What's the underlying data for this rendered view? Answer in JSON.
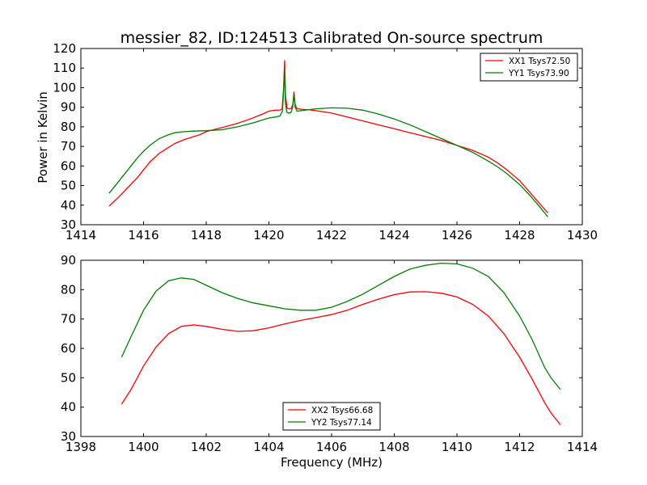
{
  "figure": {
    "title": "messier_82, ID:124513 Calibrated On-source spectrum",
    "ylabel": "Power in Kelvin",
    "xlabel": "Frequency (MHz)"
  },
  "chart_data": [
    {
      "type": "line",
      "xlim": [
        1414,
        1430
      ],
      "ylim": [
        30,
        120
      ],
      "xticks": [
        1414,
        1416,
        1418,
        1420,
        1422,
        1424,
        1426,
        1428,
        1430
      ],
      "yticks": [
        30,
        40,
        50,
        60,
        70,
        80,
        90,
        100,
        110,
        120
      ],
      "legend_position": "top-right",
      "series": [
        {
          "name": "XX1 Tsys72.50",
          "color": "#ff0000",
          "x": [
            1414.9,
            1415.2,
            1415.5,
            1415.8,
            1416.0,
            1416.2,
            1416.5,
            1416.8,
            1417.0,
            1417.3,
            1417.5,
            1417.8,
            1418.0,
            1418.3,
            1418.6,
            1419.0,
            1419.4,
            1419.8,
            1420.0,
            1420.2,
            1420.35,
            1420.42,
            1420.47,
            1420.5,
            1420.53,
            1420.58,
            1420.65,
            1420.72,
            1420.77,
            1420.8,
            1420.83,
            1420.88,
            1421.0,
            1421.3,
            1421.6,
            1422.0,
            1422.5,
            1423.0,
            1423.5,
            1424.0,
            1424.5,
            1425.0,
            1425.5,
            1426.0,
            1426.5,
            1427.0,
            1427.3,
            1427.6,
            1428.0,
            1428.3,
            1428.6,
            1428.9
          ],
          "y": [
            39.5,
            44,
            49,
            54,
            58,
            62,
            66.5,
            69.5,
            71.5,
            73.5,
            74.5,
            76,
            77.5,
            78.8,
            80,
            81.8,
            84,
            86.5,
            88,
            88.5,
            88.6,
            89,
            100,
            114,
            96,
            89.5,
            89.2,
            89.5,
            92,
            98,
            92,
            89.5,
            89,
            88.7,
            88,
            87,
            85,
            83,
            81,
            79,
            77,
            75,
            73,
            70.5,
            68,
            64.5,
            61.5,
            58,
            52.5,
            47,
            41.5,
            36
          ]
        },
        {
          "name": "YY1 Tsys73.90",
          "color": "#008000",
          "x": [
            1414.9,
            1415.2,
            1415.5,
            1415.8,
            1416.0,
            1416.2,
            1416.5,
            1416.8,
            1417.0,
            1417.3,
            1417.6,
            1418.0,
            1418.5,
            1419.0,
            1419.5,
            1419.8,
            1420.0,
            1420.2,
            1420.35,
            1420.43,
            1420.47,
            1420.5,
            1420.53,
            1420.57,
            1420.62,
            1420.7,
            1420.76,
            1420.8,
            1420.84,
            1420.9,
            1421.0,
            1421.5,
            1422.0,
            1422.5,
            1423.0,
            1423.5,
            1424.0,
            1424.5,
            1425.0,
            1425.5,
            1426.0,
            1426.5,
            1427.0,
            1427.3,
            1427.6,
            1428.0,
            1428.3,
            1428.6,
            1428.9
          ],
          "y": [
            46,
            52,
            58,
            64,
            67.5,
            70.5,
            74,
            76,
            77,
            77.5,
            77.8,
            78,
            78.5,
            80,
            82,
            83.5,
            84.5,
            85,
            85.5,
            88,
            98,
            110,
            92,
            87.5,
            87,
            87.2,
            90,
            97,
            90,
            88,
            88.2,
            89.2,
            89.7,
            89.5,
            88.5,
            86.5,
            84,
            81,
            77.5,
            74,
            70.5,
            67,
            62.5,
            59.5,
            56,
            50.5,
            45.5,
            40,
            34
          ]
        }
      ]
    },
    {
      "type": "line",
      "xlim": [
        1398,
        1414
      ],
      "ylim": [
        30,
        90
      ],
      "xticks": [
        1398,
        1400,
        1402,
        1404,
        1406,
        1408,
        1410,
        1412,
        1414
      ],
      "yticks": [
        30,
        40,
        50,
        60,
        70,
        80,
        90
      ],
      "legend_position": "bottom-center",
      "series": [
        {
          "name": "XX2 Tsys66.68",
          "color": "#ff0000",
          "x": [
            1399.3,
            1399.6,
            1400.0,
            1400.4,
            1400.8,
            1401.2,
            1401.6,
            1402.0,
            1402.5,
            1403.0,
            1403.5,
            1404.0,
            1404.5,
            1405.0,
            1405.5,
            1406.0,
            1406.5,
            1407.0,
            1407.5,
            1408.0,
            1408.5,
            1409.0,
            1409.5,
            1410.0,
            1410.5,
            1411.0,
            1411.5,
            1412.0,
            1412.4,
            1412.8,
            1413.0,
            1413.3
          ],
          "y": [
            41,
            46,
            54,
            60.5,
            65,
            67.5,
            68,
            67.5,
            66.5,
            65.8,
            66,
            67,
            68.3,
            69.5,
            70.5,
            71.5,
            73,
            75,
            76.8,
            78.3,
            79.2,
            79.3,
            78.8,
            77.5,
            75,
            71,
            65,
            57,
            49.5,
            41.5,
            38,
            34
          ]
        },
        {
          "name": "YY2 Tsys77.14",
          "color": "#008000",
          "x": [
            1399.3,
            1399.6,
            1400.0,
            1400.4,
            1400.8,
            1401.2,
            1401.6,
            1402.0,
            1402.5,
            1403.0,
            1403.5,
            1404.0,
            1404.5,
            1405.0,
            1405.5,
            1406.0,
            1406.5,
            1407.0,
            1407.5,
            1408.0,
            1408.5,
            1409.0,
            1409.5,
            1410.0,
            1410.5,
            1411.0,
            1411.5,
            1412.0,
            1412.4,
            1412.8,
            1413.0,
            1413.3
          ],
          "y": [
            57,
            64,
            73,
            79.5,
            83,
            84,
            83.5,
            81.5,
            79,
            77,
            75.5,
            74.5,
            73.5,
            73,
            73,
            74,
            76,
            78.5,
            81.5,
            84.5,
            87,
            88.3,
            89,
            88.8,
            87.3,
            84.5,
            79,
            71,
            63,
            53.5,
            50,
            46
          ]
        }
      ]
    }
  ]
}
